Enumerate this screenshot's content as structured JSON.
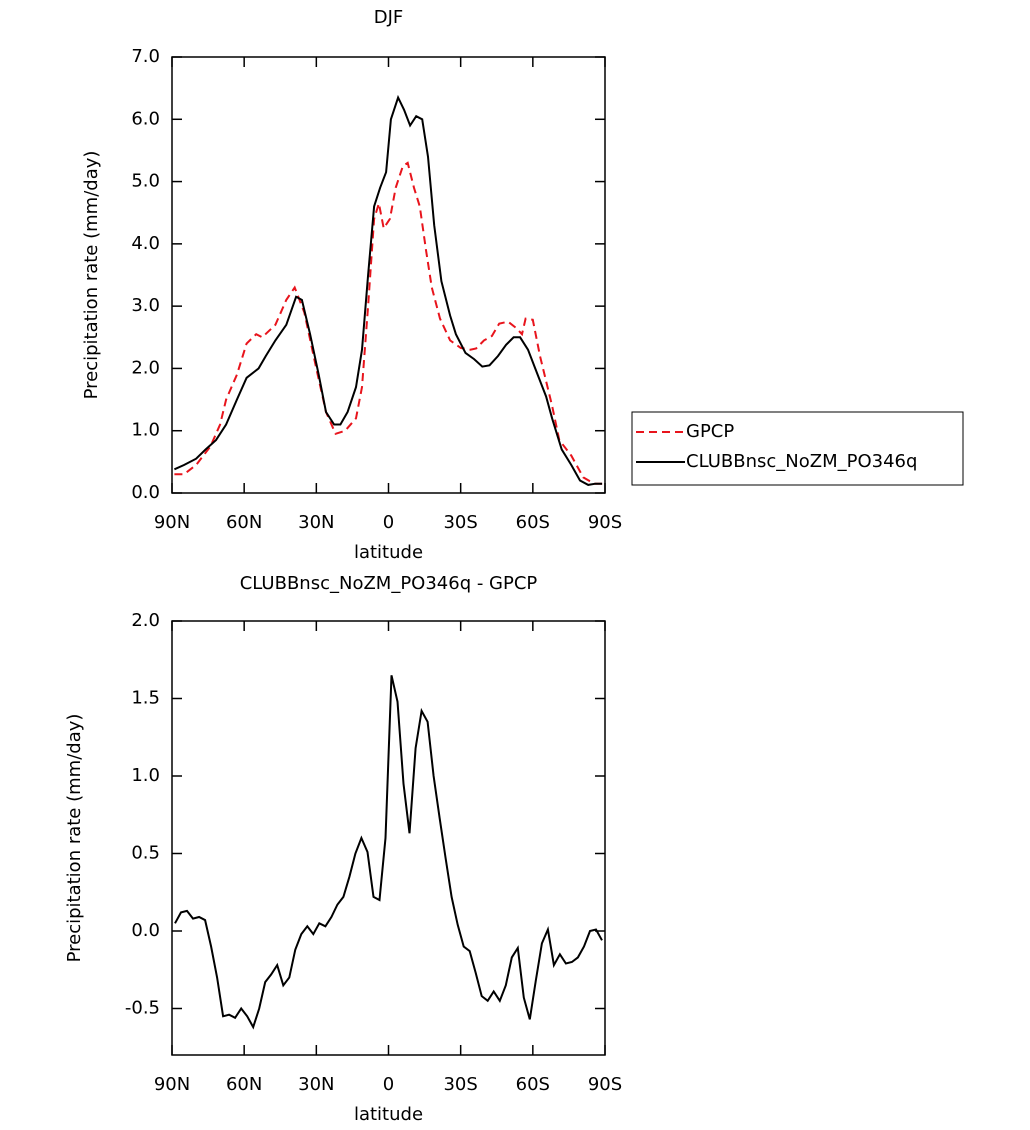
{
  "chart_data": [
    {
      "type": "line",
      "title": "DJF",
      "xlabel": "latitude",
      "ylabel": "Precipitation rate (mm/day)",
      "xlim": [
        90,
        -90
      ],
      "xticks": [
        {
          "value": 90,
          "label": "90N"
        },
        {
          "value": 60,
          "label": "60N"
        },
        {
          "value": 30,
          "label": "30N"
        },
        0,
        {
          "value": -30,
          "label": "30S"
        },
        {
          "value": -60,
          "label": "60S"
        },
        {
          "value": -90,
          "label": "90S"
        }
      ],
      "ylim": [
        0,
        7
      ],
      "yticks": [
        {
          "value": 0,
          "label": "0.0"
        },
        {
          "value": 1,
          "label": "1.0"
        },
        {
          "value": 2,
          "label": "2.0"
        },
        {
          "value": 3,
          "label": "3.0"
        },
        {
          "value": 4,
          "label": "4.0"
        },
        {
          "value": 5,
          "label": "5.0"
        },
        {
          "value": 6,
          "label": "6.0"
        },
        {
          "value": 7,
          "label": "7.0"
        }
      ],
      "legend": "right",
      "series": [
        {
          "name": "GPCP",
          "color": "#e8141c",
          "linestyle": "dashed",
          "x": [
            89,
            85,
            80,
            74,
            70,
            67.5,
            63,
            59,
            55,
            52.5,
            47,
            42.5,
            39,
            35,
            30,
            26,
            22,
            18,
            13.5,
            11,
            8.5,
            6,
            4,
            2,
            -0.6,
            -3,
            -6,
            -8,
            -10.6,
            -13,
            -15.6,
            -18,
            -21.4,
            -25.6,
            -30,
            -34,
            -36.4,
            -39.7,
            -43,
            -46,
            -49.7,
            -53,
            -55.5,
            -57,
            -60,
            -63,
            -68,
            -71,
            -76,
            -81,
            -85.5,
            -88.8
          ],
          "values": [
            0.3,
            0.3,
            0.45,
            0.75,
            1.1,
            1.5,
            1.9,
            2.4,
            2.55,
            2.5,
            2.7,
            3.1,
            3.3,
            2.9,
            2.0,
            1.3,
            0.95,
            1.0,
            1.2,
            1.7,
            3.0,
            4.4,
            4.65,
            4.25,
            4.4,
            4.9,
            5.25,
            5.3,
            4.9,
            4.6,
            3.9,
            3.3,
            2.8,
            2.45,
            2.33,
            2.3,
            2.32,
            2.45,
            2.52,
            2.72,
            2.75,
            2.65,
            2.55,
            2.8,
            2.78,
            2.2,
            1.4,
            0.85,
            0.6,
            0.25,
            0.15,
            0.15
          ]
        },
        {
          "name": "CLUBBnsc_NoZM_PO346q",
          "color": "#000000",
          "linestyle": "solid",
          "x": [
            89,
            85,
            80,
            76,
            71.7,
            67.5,
            63,
            59,
            54,
            51,
            47,
            42.5,
            38.4,
            36,
            32.6,
            29,
            26,
            22.6,
            20,
            17,
            13.5,
            11,
            8.5,
            6,
            3.5,
            1,
            -1,
            -4,
            -6.5,
            -9,
            -11.5,
            -14,
            -16.4,
            -19,
            -22,
            -25.6,
            -28,
            -32,
            -35.6,
            -39,
            -42,
            -45.5,
            -48.9,
            -52,
            -54.7,
            -58,
            -61,
            -65.5,
            -68,
            -72,
            -76,
            -79.6,
            -83,
            -86,
            -88.8
          ],
          "values": [
            0.38,
            0.45,
            0.55,
            0.7,
            0.85,
            1.1,
            1.5,
            1.85,
            2.0,
            2.2,
            2.45,
            2.7,
            3.15,
            3.1,
            2.55,
            1.9,
            1.3,
            1.1,
            1.1,
            1.3,
            1.7,
            2.3,
            3.5,
            4.6,
            4.9,
            5.15,
            6.0,
            6.35,
            6.15,
            5.9,
            6.05,
            6.0,
            5.4,
            4.3,
            3.4,
            2.85,
            2.55,
            2.25,
            2.15,
            2.03,
            2.05,
            2.2,
            2.38,
            2.5,
            2.5,
            2.3,
            2.0,
            1.55,
            1.2,
            0.7,
            0.45,
            0.2,
            0.13,
            0.15,
            0.15
          ]
        }
      ]
    },
    {
      "type": "line",
      "title": "CLUBBnsc_NoZM_PO346q - GPCP",
      "xlabel": "latitude",
      "ylabel": "Precipitation rate (mm/day)",
      "xlim": [
        90,
        -90
      ],
      "xticks": [
        {
          "value": 90,
          "label": "90N"
        },
        {
          "value": 60,
          "label": "60N"
        },
        {
          "value": 30,
          "label": "30N"
        },
        0,
        {
          "value": -30,
          "label": "30S"
        },
        {
          "value": -60,
          "label": "60S"
        },
        {
          "value": -90,
          "label": "90S"
        }
      ],
      "ylim": [
        -0.8,
        2
      ],
      "yticks": [
        -0.5,
        {
          "value": 0,
          "label": "0.0"
        },
        0.5,
        {
          "value": 1,
          "label": "1.0"
        },
        1.5,
        {
          "value": 2,
          "label": "2.0"
        }
      ],
      "color": "#000000",
      "x": [
        88.75,
        86.25,
        83.75,
        81.25,
        78.75,
        76.25,
        73.75,
        71.25,
        68.75,
        66.25,
        63.75,
        61.25,
        58.75,
        56.25,
        53.75,
        51.25,
        48.75,
        46.25,
        43.75,
        41.25,
        38.75,
        36.25,
        33.75,
        31.25,
        28.75,
        26.25,
        23.75,
        21.25,
        18.75,
        16.25,
        13.75,
        11.25,
        8.75,
        6.25,
        3.75,
        1.25,
        -1.25,
        -3.75,
        -6.25,
        -8.75,
        -11.25,
        -13.75,
        -16.25,
        -18.75,
        -21.25,
        -23.75,
        -26.25,
        -28.75,
        -31.25,
        -33.75,
        -36.25,
        -38.75,
        -41.25,
        -43.75,
        -46.25,
        -48.75,
        -51.25,
        -53.75,
        -56.25,
        -58.75,
        -61.25,
        -63.75,
        -66.25,
        -68.75,
        -71.25,
        -73.75,
        -76.25,
        -78.75,
        -81.25,
        -83.75,
        -86.25,
        -88.75
      ],
      "values": [
        0.05,
        0.12,
        0.13,
        0.08,
        0.09,
        0.07,
        -0.1,
        -0.3,
        -0.55,
        -0.54,
        -0.56,
        -0.5,
        -0.55,
        -0.62,
        -0.5,
        -0.33,
        -0.28,
        -0.22,
        -0.35,
        -0.3,
        -0.12,
        -0.02,
        0.03,
        -0.02,
        0.05,
        0.03,
        0.09,
        0.17,
        0.22,
        0.35,
        0.5,
        0.6,
        0.51,
        0.22,
        0.2,
        0.6,
        1.65,
        1.48,
        0.95,
        0.63,
        1.18,
        1.42,
        1.35,
        1.0,
        0.73,
        0.47,
        0.22,
        0.04,
        -0.1,
        -0.13,
        -0.27,
        -0.42,
        -0.45,
        -0.39,
        -0.45,
        -0.35,
        -0.17,
        -0.11,
        -0.43,
        -0.57,
        -0.32,
        -0.08,
        0.01,
        -0.22,
        -0.15,
        -0.21,
        -0.2,
        -0.17,
        -0.1,
        0,
        0.01,
        -0.06
      ]
    }
  ]
}
